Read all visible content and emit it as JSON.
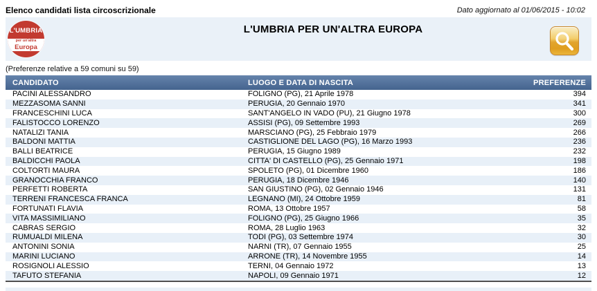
{
  "header": {
    "title": "Elenco candidati lista circoscrizionale",
    "updated": "Dato aggiornato al 01/06/2015 - 10:02"
  },
  "panel": {
    "list_title": "L'UMBRIA PER UN'ALTRA EUROPA",
    "logo": {
      "line1": "L'UMBRIA",
      "line2": "per un'altra",
      "line3": "Europa"
    },
    "search_icon": "magnifier-icon"
  },
  "note": "(Preferenze relative a 59 comuni su 59)",
  "table": {
    "columns": [
      "CANDIDATO",
      "LUOGO E DATA DI NASCITA",
      "PREFERENZE"
    ],
    "rows": [
      {
        "candidato": "PACINI ALESSANDRO",
        "luogo": "FOLIGNO (PG), 21 Aprile 1978",
        "preferenze": "394"
      },
      {
        "candidato": "MEZZASOMA SANNI",
        "luogo": "PERUGIA, 20 Gennaio 1970",
        "preferenze": "341"
      },
      {
        "candidato": "FRANCESCHINI LUCA",
        "luogo": "SANT'ANGELO IN VADO (PU), 21 Giugno 1978",
        "preferenze": "300"
      },
      {
        "candidato": "FALISTOCCO LORENZO",
        "luogo": "ASSISI (PG), 09 Settembre 1993",
        "preferenze": "269"
      },
      {
        "candidato": "NATALIZI TANIA",
        "luogo": "MARSCIANO (PG), 25 Febbraio 1979",
        "preferenze": "266"
      },
      {
        "candidato": "BALDONI MATTIA",
        "luogo": "CASTIGLIONE DEL LAGO (PG), 16 Marzo 1993",
        "preferenze": "236"
      },
      {
        "candidato": "BALLI BEATRICE",
        "luogo": "PERUGIA, 15 Giugno 1989",
        "preferenze": "232"
      },
      {
        "candidato": "BALDICCHI PAOLA",
        "luogo": "CITTA' DI CASTELLO (PG), 25 Gennaio 1971",
        "preferenze": "198"
      },
      {
        "candidato": "COLTORTI MAURA",
        "luogo": "SPOLETO (PG), 01 Dicembre 1960",
        "preferenze": "186"
      },
      {
        "candidato": "GRANOCCHIA FRANCO",
        "luogo": "PERUGIA, 18 Dicembre 1946",
        "preferenze": "140"
      },
      {
        "candidato": "PERFETTI ROBERTA",
        "luogo": "SAN GIUSTINO (PG), 02 Gennaio 1946",
        "preferenze": "131"
      },
      {
        "candidato": "TERRENI FRANCESCA FRANCA",
        "luogo": "LEGNANO (MI), 24 Ottobre 1959",
        "preferenze": "81"
      },
      {
        "candidato": "FORTUNATI FLAVIA",
        "luogo": "ROMA, 13 Ottobre 1957",
        "preferenze": "58"
      },
      {
        "candidato": "VITA MASSIMILIANO",
        "luogo": "FOLIGNO (PG), 25 Giugno 1966",
        "preferenze": "35"
      },
      {
        "candidato": "CABRAS SERGIO",
        "luogo": "ROMA, 28 Luglio 1963",
        "preferenze": "32"
      },
      {
        "candidato": "RUMUALDI MILENA",
        "luogo": "TODI (PG), 03 Settembre 1974",
        "preferenze": "30"
      },
      {
        "candidato": "ANTONINI SONIA",
        "luogo": "NARNI (TR), 07 Gennaio 1955",
        "preferenze": "25"
      },
      {
        "candidato": "MARINI LUCIANO",
        "luogo": "ARRONE (TR), 14 Novembre 1955",
        "preferenze": "14"
      },
      {
        "candidato": "ROSIGNOLI ALESSIO",
        "luogo": "TERNI, 04 Gennaio 1972",
        "preferenze": "13"
      },
      {
        "candidato": "TAFUTO STEFANIA",
        "luogo": "NAPOLI, 09 Gennaio 1971",
        "preferenze": "12"
      }
    ]
  },
  "colors": {
    "table_header_blue": "#4C6F9E",
    "row_alt_blue": "#E8F0F8",
    "panel_blue": "#EAF1F8",
    "logo_red": "#C23A30",
    "search_gold": "#E8B23C",
    "search_border": "#C8882B",
    "table_bottom_line": "#4F4F4F"
  }
}
